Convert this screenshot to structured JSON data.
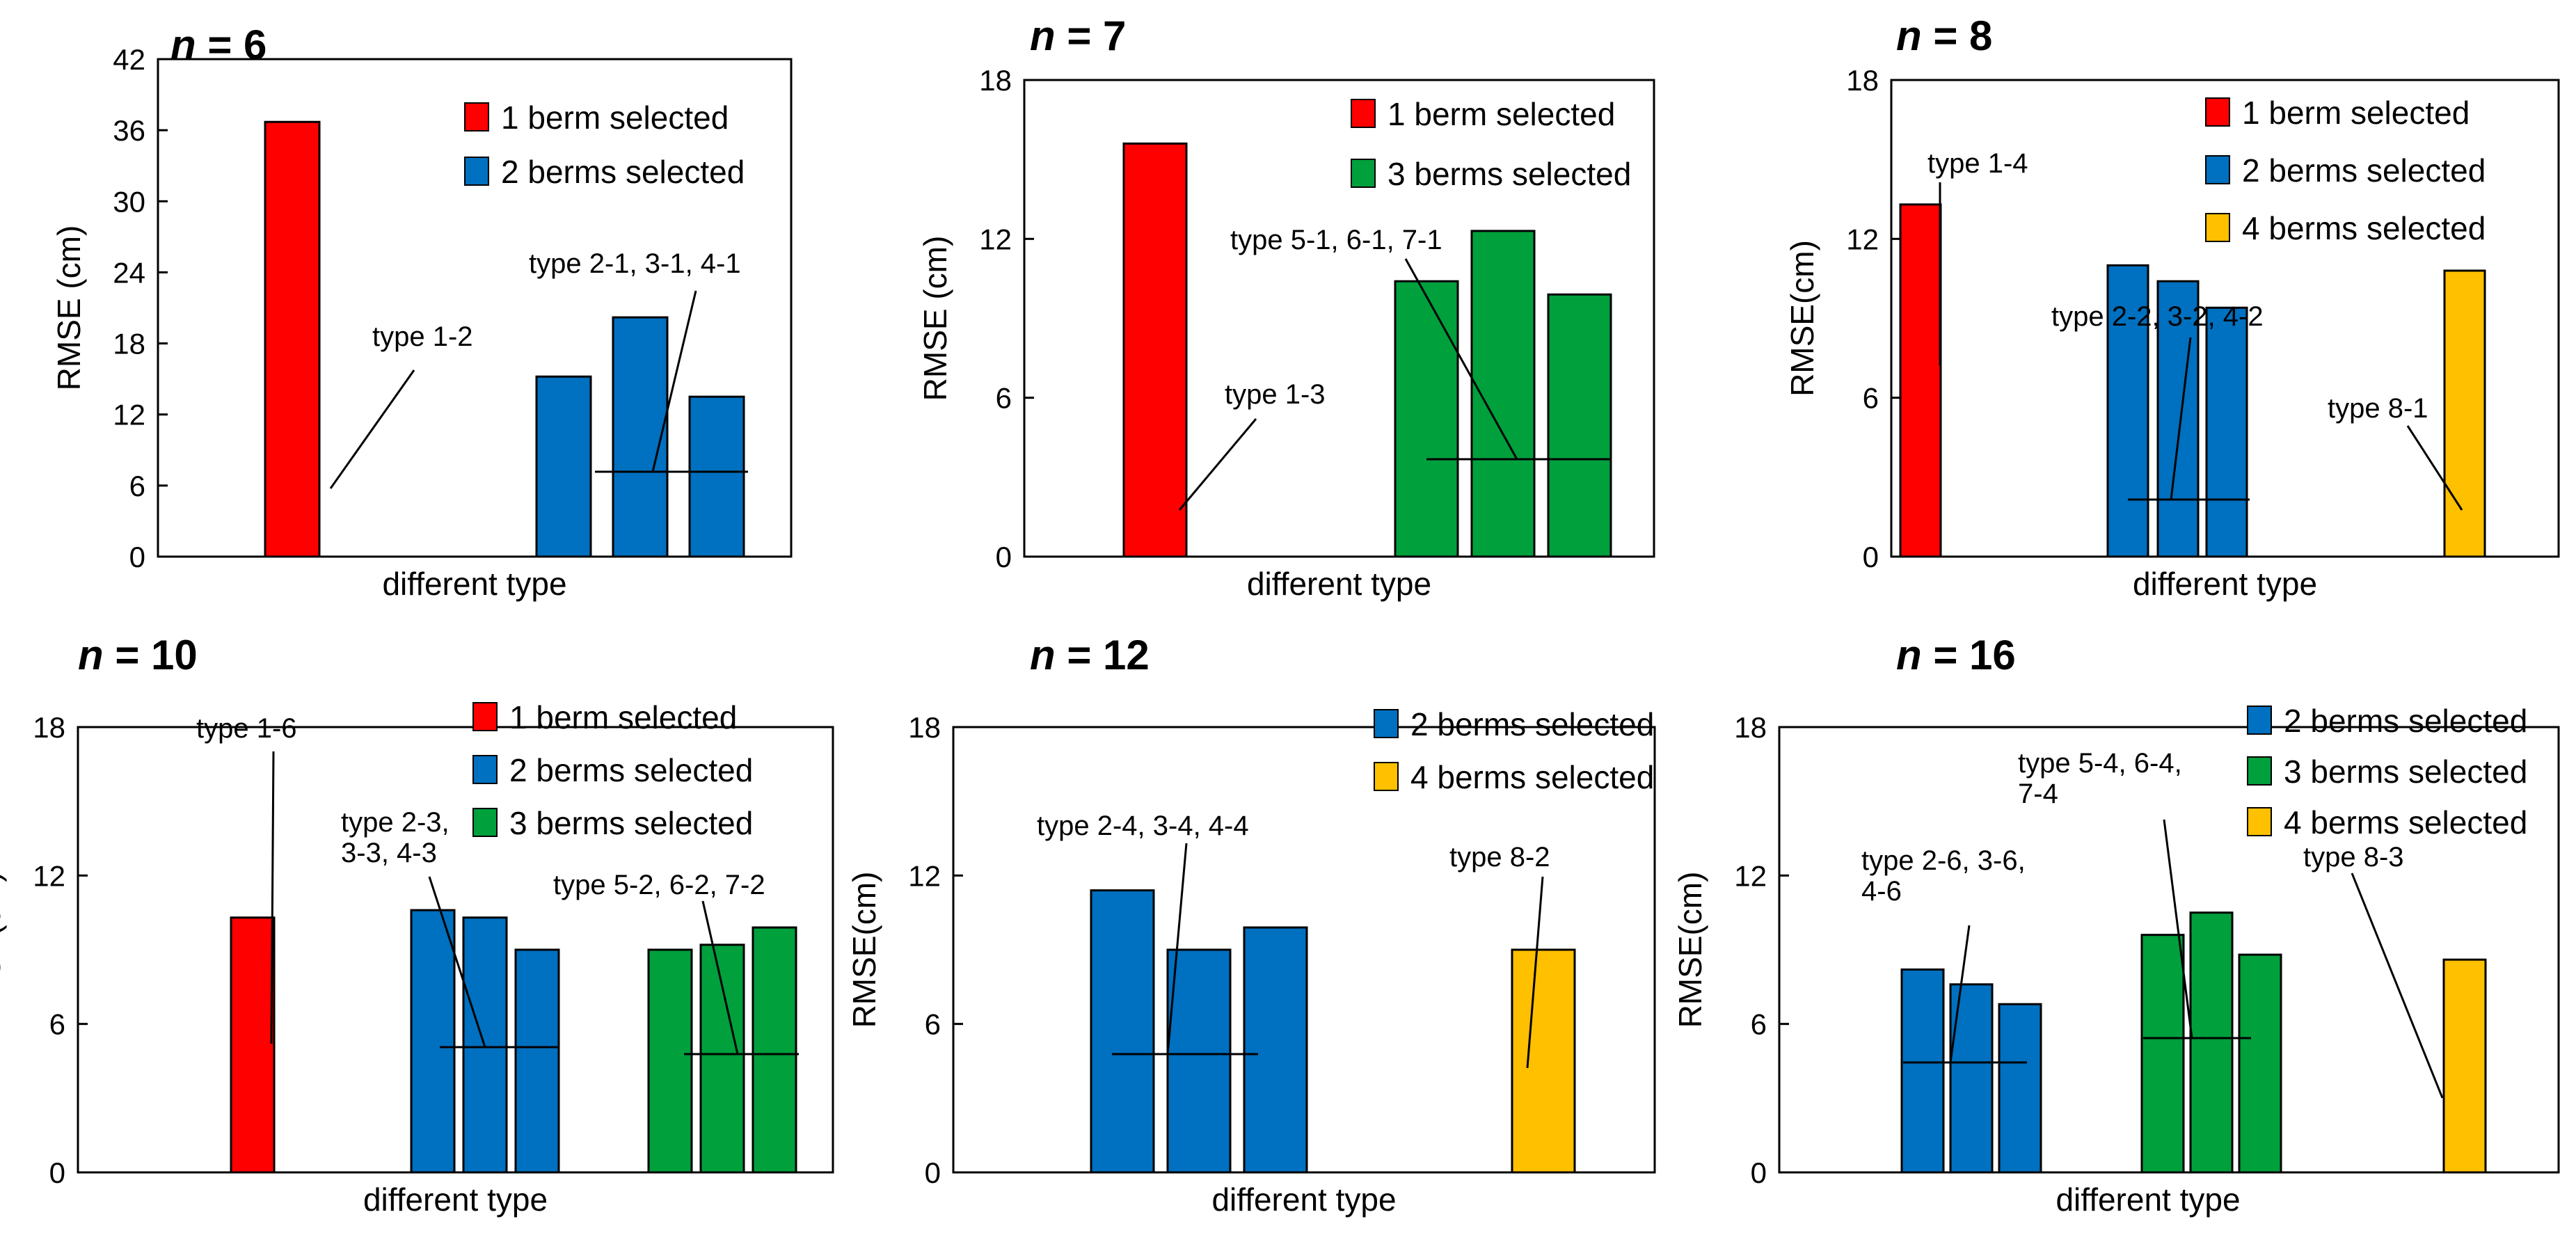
{
  "colors": {
    "1 berm selected": "#ff0000",
    "2 berms selected": "#0070c0",
    "3 berms selected": "#00a03c",
    "4 berms selected": "#ffc000"
  },
  "chart_data": [
    {
      "type": "bar",
      "title": "n = 6",
      "title_var": "n",
      "title_rest": " = 6",
      "xlabel": "different type",
      "ylabel": "RMSE (cm)",
      "ylim": [
        0,
        42
      ],
      "yticks": [
        "0",
        "6",
        "12",
        "18",
        "24",
        "30",
        "36",
        "42"
      ],
      "legend": [
        "1 berm selected",
        "2 berms selected"
      ],
      "groups": [
        {
          "series": "1 berm selected",
          "values": [
            36.7
          ],
          "label": "type 1-2"
        },
        {
          "series": "2 berms selected",
          "values": [
            15.2,
            20.2,
            13.5
          ],
          "label": "type 2-1, 3-1, 4-1"
        }
      ]
    },
    {
      "type": "bar",
      "title": "n = 7",
      "title_var": "n",
      "title_rest": " = 7",
      "xlabel": "different type",
      "ylabel": "RMSE (cm)",
      "ylim": [
        0,
        18
      ],
      "yticks": [
        "0",
        "6",
        "12",
        "18"
      ],
      "legend": [
        "1 berm selected",
        "3 berms selected"
      ],
      "groups": [
        {
          "series": "1 berm selected",
          "values": [
            15.6
          ],
          "label": "type 1-3"
        },
        {
          "series": "3 berms selected",
          "values": [
            10.4,
            12.3,
            9.9
          ],
          "label": "type 5-1, 6-1, 7-1"
        }
      ]
    },
    {
      "type": "bar",
      "title": "n = 8",
      "title_var": "n",
      "title_rest": " = 8",
      "xlabel": "different type",
      "ylabel": "RMSE(cm)",
      "ylim": [
        0,
        18
      ],
      "yticks": [
        "0",
        "6",
        "12",
        "18"
      ],
      "legend": [
        "1 berm selected",
        "2 berms selected",
        "4 berms selected"
      ],
      "groups": [
        {
          "series": "1 berm selected",
          "values": [
            13.3
          ],
          "label": "type 1-4"
        },
        {
          "series": "2 berms selected",
          "values": [
            11.0,
            10.4,
            9.4
          ],
          "label": "type 2-2, 3-2, 4-2"
        },
        {
          "series": "4 berms selected",
          "values": [
            10.8
          ],
          "label": "type 8-1"
        }
      ]
    },
    {
      "type": "bar",
      "title": "n = 10",
      "title_var": "n",
      "title_rest": " = 10",
      "xlabel": "different type",
      "ylabel": "RMSE(cm)",
      "ylim": [
        0,
        18
      ],
      "yticks": [
        "0",
        "6",
        "12",
        "18"
      ],
      "legend": [
        "1 berm selected",
        "2 berms selected",
        "3 berms selected"
      ],
      "groups": [
        {
          "series": "1 berm selected",
          "values": [
            10.3
          ],
          "label": "type 1-6"
        },
        {
          "series": "2 berms selected",
          "values": [
            10.6,
            10.3,
            9.0
          ],
          "label": "type 2-3, 3-3, 4-3"
        },
        {
          "series": "3 berms selected",
          "values": [
            9.0,
            9.2,
            9.9
          ],
          "label": "type 5-2, 6-2, 7-2"
        }
      ]
    },
    {
      "type": "bar",
      "title": "n = 12",
      "title_var": "n",
      "title_rest": " = 12",
      "xlabel": "different type",
      "ylabel": "RMSE(cm)",
      "ylim": [
        0,
        18
      ],
      "yticks": [
        "0",
        "6",
        "12",
        "18"
      ],
      "legend": [
        "2 berms selected",
        "4 berms selected"
      ],
      "groups": [
        {
          "series": "2 berms selected",
          "values": [
            11.4,
            9.0,
            9.9
          ],
          "label": "type 2-4, 3-4, 4-4"
        },
        {
          "series": "4 berms selected",
          "values": [
            9.0
          ],
          "label": "type 8-2"
        }
      ]
    },
    {
      "type": "bar",
      "title": "n = 16",
      "title_var": "n",
      "title_rest": " = 16",
      "xlabel": "different type",
      "ylabel": "RMSE(cm)",
      "ylim": [
        0,
        18
      ],
      "yticks": [
        "0",
        "6",
        "12",
        "18"
      ],
      "legend": [
        "2 berms selected",
        "3 berms selected",
        "4 berms selected"
      ],
      "groups": [
        {
          "series": "2 berms selected",
          "values": [
            8.2,
            7.6,
            6.8
          ],
          "label": "type 2-6, 3-6, 4-6"
        },
        {
          "series": "3 berms selected",
          "values": [
            9.6,
            10.5,
            8.8
          ],
          "label": "type 5-4, 6-4, 7-4"
        },
        {
          "series": "4 berms selected",
          "values": [
            8.6
          ],
          "label": "type 8-3"
        }
      ]
    }
  ]
}
